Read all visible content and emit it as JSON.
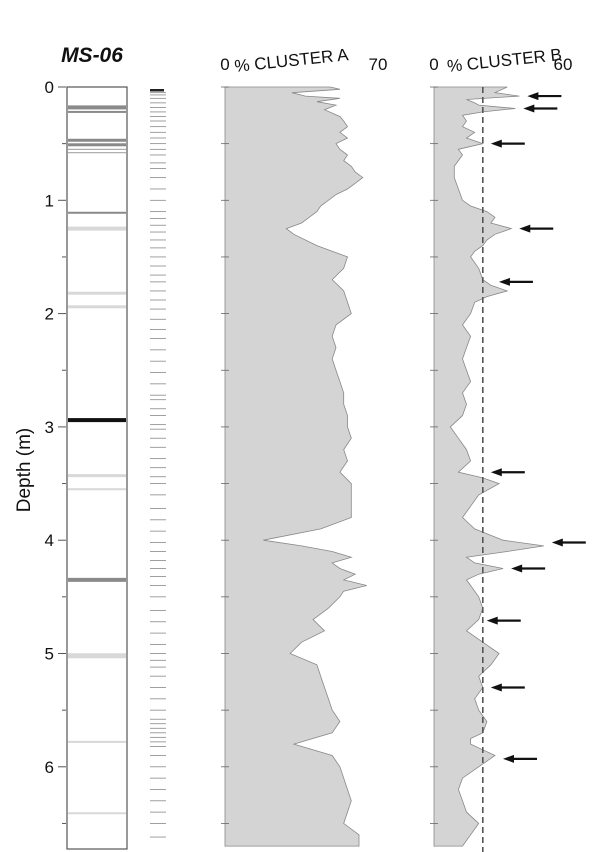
{
  "core_title": "MS-06",
  "y_axis": {
    "label": "Depth (m)",
    "ticks": [
      "0",
      "1",
      "2",
      "3",
      "4",
      "5",
      "6"
    ],
    "tick_values": [
      0,
      1,
      2,
      3,
      4,
      5,
      6
    ],
    "range": [
      0,
      6.7
    ]
  },
  "colors": {
    "fill": "#d4d4d4",
    "line": "#888888",
    "arrow": "#111111",
    "dark_band": "#111111",
    "mid_band": "#8a8a8a",
    "light_band": "#d8d8d8"
  },
  "core_log": {
    "bands": [
      {
        "depth": 0.18,
        "tone": "mid",
        "thickness": 4
      },
      {
        "depth": 0.22,
        "tone": "mid",
        "thickness": 2
      },
      {
        "depth": 0.47,
        "tone": "mid",
        "thickness": 3
      },
      {
        "depth": 0.51,
        "tone": "mid",
        "thickness": 3
      },
      {
        "depth": 0.55,
        "tone": "thin",
        "thickness": 1
      },
      {
        "depth": 0.58,
        "tone": "thin",
        "thickness": 1
      },
      {
        "depth": 1.11,
        "tone": "mid",
        "thickness": 2
      },
      {
        "depth": 1.25,
        "tone": "light",
        "thickness": 4
      },
      {
        "depth": 1.82,
        "tone": "light",
        "thickness": 3
      },
      {
        "depth": 1.94,
        "tone": "light",
        "thickness": 3
      },
      {
        "depth": 2.94,
        "tone": "dark",
        "thickness": 4
      },
      {
        "depth": 3.43,
        "tone": "light",
        "thickness": 3
      },
      {
        "depth": 3.55,
        "tone": "light",
        "thickness": 2
      },
      {
        "depth": 4.35,
        "tone": "mid",
        "thickness": 4
      },
      {
        "depth": 5.02,
        "tone": "light",
        "thickness": 5
      },
      {
        "depth": 5.78,
        "tone": "light",
        "thickness": 2
      },
      {
        "depth": 6.41,
        "tone": "light",
        "thickness": 2
      }
    ]
  },
  "sample_depths": [
    0.05,
    0.07,
    0.1,
    0.14,
    0.18,
    0.22,
    0.26,
    0.3,
    0.35,
    0.4,
    0.45,
    0.5,
    0.55,
    0.6,
    0.67,
    0.72,
    0.8,
    0.9,
    1.0,
    1.1,
    1.16,
    1.22,
    1.28,
    1.35,
    1.42,
    1.5,
    1.58,
    1.66,
    1.72,
    1.8,
    1.88,
    1.96,
    2.05,
    2.14,
    2.22,
    2.32,
    2.42,
    2.52,
    2.62,
    2.72,
    2.76,
    2.84,
    2.9,
    2.98,
    3.02,
    3.1,
    3.18,
    3.28,
    3.36,
    3.44,
    3.5,
    3.6,
    3.72,
    3.82,
    3.92,
    4.02,
    4.1,
    4.18,
    4.25,
    4.32,
    4.4,
    4.5,
    4.62,
    4.72,
    4.82,
    4.92,
    5.0,
    5.06,
    5.12,
    5.2,
    5.3,
    5.4,
    5.5,
    5.58,
    5.62,
    5.66,
    5.7,
    5.74,
    5.78,
    5.82,
    5.9,
    6.0,
    6.1,
    6.2,
    6.3,
    6.4,
    6.5,
    6.62
  ],
  "chart_data": [
    {
      "type": "area",
      "title": "% CLUSTER A",
      "xlim": [
        0,
        70
      ],
      "x_ticks": [
        "0",
        "70"
      ],
      "ylim": [
        0,
        6.7
      ],
      "depth": [
        0.0,
        0.02,
        0.05,
        0.08,
        0.1,
        0.13,
        0.16,
        0.2,
        0.23,
        0.26,
        0.3,
        0.35,
        0.4,
        0.45,
        0.5,
        0.55,
        0.6,
        0.65,
        0.7,
        0.75,
        0.8,
        0.85,
        0.9,
        0.95,
        1.0,
        1.05,
        1.1,
        1.15,
        1.2,
        1.25,
        1.3,
        1.4,
        1.5,
        1.6,
        1.7,
        1.8,
        1.9,
        2.0,
        2.1,
        2.2,
        2.3,
        2.4,
        2.5,
        2.6,
        2.7,
        2.8,
        2.9,
        3.0,
        3.1,
        3.2,
        3.3,
        3.4,
        3.5,
        3.6,
        3.7,
        3.8,
        3.9,
        4.0,
        4.05,
        4.1,
        4.15,
        4.2,
        4.25,
        4.3,
        4.35,
        4.4,
        4.45,
        4.5,
        4.6,
        4.7,
        4.8,
        4.9,
        5.0,
        5.1,
        5.2,
        5.3,
        5.4,
        5.5,
        5.6,
        5.7,
        5.8,
        5.9,
        6.0,
        6.1,
        6.2,
        6.3,
        6.4,
        6.5,
        6.6,
        6.7
      ],
      "values": [
        55,
        60,
        35,
        42,
        60,
        48,
        58,
        52,
        56,
        60,
        62,
        64,
        60,
        64,
        58,
        60,
        64,
        62,
        66,
        68,
        72,
        68,
        64,
        58,
        54,
        50,
        48,
        44,
        40,
        32,
        36,
        48,
        64,
        62,
        56,
        62,
        64,
        66,
        58,
        56,
        58,
        56,
        58,
        60,
        62,
        62,
        64,
        64,
        66,
        62,
        64,
        60,
        66,
        66,
        66,
        66,
        50,
        20,
        40,
        56,
        66,
        56,
        60,
        68,
        62,
        74,
        62,
        60,
        54,
        46,
        52,
        40,
        34,
        48,
        50,
        52,
        54,
        56,
        60,
        56,
        36,
        56,
        60,
        62,
        64,
        66,
        64,
        62,
        70,
        70
      ]
    },
    {
      "type": "area",
      "title": "% CLUSTER B",
      "xlim": [
        0,
        60
      ],
      "x_ticks": [
        "0",
        "60"
      ],
      "ylim": [
        0,
        6.7
      ],
      "reference_line_x": 24,
      "depth": [
        0.0,
        0.05,
        0.08,
        0.11,
        0.14,
        0.16,
        0.19,
        0.22,
        0.25,
        0.3,
        0.35,
        0.4,
        0.45,
        0.5,
        0.55,
        0.6,
        0.65,
        0.7,
        0.8,
        0.9,
        1.0,
        1.05,
        1.1,
        1.15,
        1.2,
        1.25,
        1.3,
        1.35,
        1.4,
        1.45,
        1.5,
        1.6,
        1.7,
        1.75,
        1.8,
        1.85,
        1.9,
        2.0,
        2.1,
        2.2,
        2.3,
        2.4,
        2.5,
        2.6,
        2.7,
        2.8,
        2.9,
        3.0,
        3.1,
        3.2,
        3.3,
        3.4,
        3.45,
        3.5,
        3.6,
        3.7,
        3.8,
        3.9,
        4.0,
        4.05,
        4.1,
        4.15,
        4.2,
        4.25,
        4.3,
        4.35,
        4.4,
        4.5,
        4.6,
        4.7,
        4.8,
        4.9,
        5.0,
        5.1,
        5.2,
        5.3,
        5.4,
        5.5,
        5.6,
        5.7,
        5.75,
        5.8,
        5.85,
        5.9,
        6.0,
        6.1,
        6.2,
        6.3,
        6.4,
        6.5,
        6.6,
        6.7
      ],
      "values": [
        36,
        30,
        42,
        16,
        20,
        22,
        40,
        24,
        14,
        16,
        14,
        20,
        16,
        24,
        12,
        14,
        12,
        10,
        10,
        12,
        14,
        18,
        26,
        30,
        28,
        38,
        30,
        26,
        24,
        20,
        18,
        22,
        24,
        28,
        36,
        26,
        20,
        18,
        14,
        18,
        16,
        14,
        16,
        18,
        14,
        16,
        14,
        8,
        12,
        16,
        18,
        12,
        24,
        32,
        22,
        18,
        14,
        20,
        34,
        54,
        36,
        16,
        20,
        34,
        22,
        16,
        18,
        22,
        24,
        22,
        16,
        24,
        32,
        28,
        22,
        24,
        20,
        22,
        26,
        24,
        18,
        18,
        24,
        30,
        22,
        14,
        12,
        14,
        16,
        22,
        18,
        14
      ]
    }
  ],
  "arrows_cluster_b": [
    0.08,
    0.19,
    0.5,
    1.25,
    1.72,
    3.4,
    4.02,
    4.25,
    4.71,
    5.3,
    5.93
  ]
}
